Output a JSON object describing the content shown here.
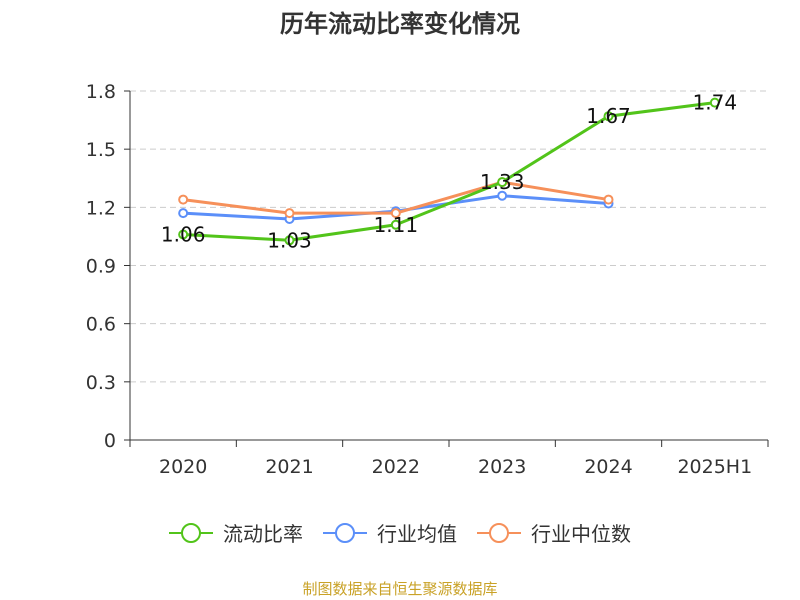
{
  "chart_data": {
    "type": "line",
    "title": "历年流动比率变化情况",
    "categories": [
      "2020",
      "2021",
      "2022",
      "2023",
      "2024",
      "2025H1"
    ],
    "ylim": [
      0,
      1.8
    ],
    "yticks": [
      "0",
      "0.3",
      "0.6",
      "0.9",
      "1.2",
      "1.5",
      "1.8"
    ],
    "grid": true,
    "legend_position": "bottom",
    "series": [
      {
        "name": "流动比率",
        "color": "#52c41a",
        "values": [
          1.06,
          1.03,
          1.11,
          1.33,
          1.67,
          1.74
        ],
        "labels": [
          "1.06",
          "1.03",
          "1.11",
          "1.33",
          "1.67",
          "1.74"
        ]
      },
      {
        "name": "行业均值",
        "color": "#5b8ff9",
        "values": [
          1.17,
          1.14,
          1.18,
          1.26,
          1.22,
          null
        ]
      },
      {
        "name": "行业中位数",
        "color": "#f6905a",
        "values": [
          1.24,
          1.17,
          1.17,
          1.33,
          1.24,
          null
        ]
      }
    ]
  },
  "source": "制图数据来自恒生聚源数据库"
}
